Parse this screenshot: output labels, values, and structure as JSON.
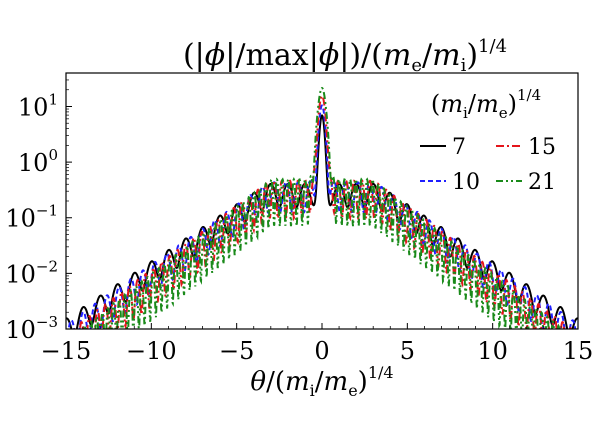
{
  "chart_data": {
    "type": "line",
    "title": "(|ϕ|/max|ϕ|)/(m_e/m_i)^{1/4}",
    "title_parts": {
      "open": "(|",
      "phi1": "ϕ",
      "mid1": "|/max|",
      "phi2": "ϕ",
      "mid2": "|)/(",
      "m1": "m",
      "sub1": "e",
      "slash": "/",
      "m2": "m",
      "sub2": "i",
      "close": ")",
      "exp": "1/4"
    },
    "xlabel": "θ/(m_i/m_e)^{1/4}",
    "xlabel_parts": {
      "theta": "θ",
      "open": "/(",
      "m1": "m",
      "sub1": "i",
      "slash": "/",
      "m2": "m",
      "sub2": "e",
      "close": ")",
      "exp": "1/4"
    },
    "ylabel": "",
    "xlim": [
      -15,
      15
    ],
    "ylim": [
      0.001,
      40
    ],
    "yscale": "log",
    "grid": false,
    "xticks": [
      -15,
      -10,
      -5,
      0,
      5,
      10,
      15
    ],
    "xtick_labels": [
      "−15",
      "−10",
      "−5",
      "0",
      "5",
      "10",
      "15"
    ],
    "yticks": [
      {
        "value": 0.001,
        "base": "10",
        "exp": "−3"
      },
      {
        "value": 0.01,
        "base": "10",
        "exp": "−2"
      },
      {
        "value": 0.1,
        "base": "10",
        "exp": "−1"
      },
      {
        "value": 1,
        "base": "10",
        "exp": "0"
      },
      {
        "value": 10,
        "base": "10",
        "exp": "1"
      }
    ],
    "legend": {
      "title": "(m_i/m_e)^{1/4}",
      "title_parts": {
        "open": "(",
        "m1": "m",
        "sub1": "i",
        "slash": "/",
        "m2": "m",
        "sub2": "e",
        "close": ")",
        "exp": "1/4"
      },
      "placement": "top-right"
    },
    "series": [
      {
        "name": "7",
        "color": "#000000",
        "dash": "solid",
        "peak": 6.5,
        "wing_at_5": 0.12,
        "wing_at_14": 0.0017,
        "ripple_period": 1.0,
        "ripple_depth": 0.45,
        "inner_lobe": 0.02
      },
      {
        "name": "10",
        "color": "#1f1fff",
        "dash": "dashed",
        "peak": 10.0,
        "wing_at_5": 0.11,
        "wing_at_14": 0.0013,
        "ripple_period": 0.7,
        "ripple_depth": 0.55,
        "inner_lobe": 0.03
      },
      {
        "name": "15",
        "color": "#e4151b",
        "dash": "dashdot",
        "peak": 15.0,
        "wing_at_5": 0.1,
        "wing_at_14": 0.00085,
        "ripple_period": 0.47,
        "ripple_depth": 0.65,
        "inner_lobe": 0.04
      },
      {
        "name": "21",
        "color": "#1a8a1a",
        "dash": "dashdotdot",
        "peak": 21.0,
        "wing_at_5": 0.09,
        "wing_at_14": 0.0006,
        "ripple_period": 0.33,
        "ripple_depth": 0.75,
        "inner_lobe": 0.05
      }
    ]
  }
}
